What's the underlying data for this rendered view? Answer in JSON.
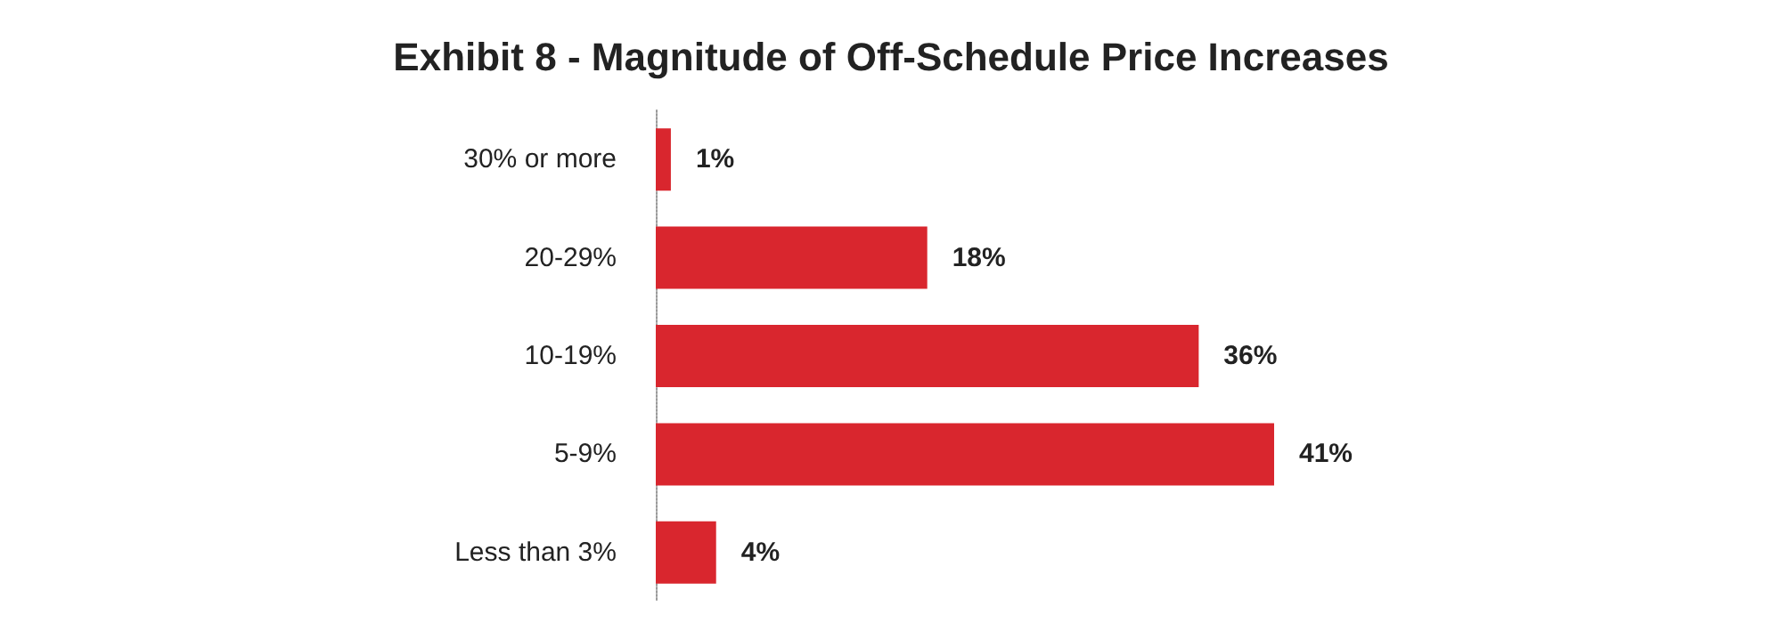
{
  "chart_data": {
    "type": "bar",
    "orientation": "horizontal",
    "title": "Exhibit 8 - Magnitude of Off-Schedule Price Increases",
    "categories": [
      "30% or more",
      "20-29%",
      "10-19%",
      "5-9%",
      "Less than 3%"
    ],
    "values": [
      1,
      18,
      36,
      41,
      4
    ],
    "value_labels": [
      "1%",
      "18%",
      "36%",
      "41%",
      "4%"
    ],
    "color": "#d9262e"
  }
}
